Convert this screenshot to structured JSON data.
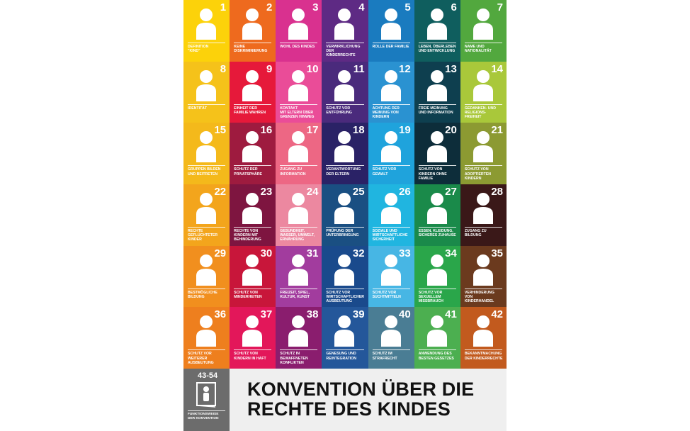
{
  "articles": [
    {
      "num": "1",
      "label": "Definition\n\"Kind\"",
      "color": "#fcd20a",
      "icon": "child-under-18-icon"
    },
    {
      "num": "2",
      "label": "Keine\nDiskriminierung",
      "color": "#ee6a1e",
      "icon": "two-children-icon"
    },
    {
      "num": "3",
      "label": "Wohl des Kindes",
      "color": "#d9318f",
      "icon": "adult-and-child-icon"
    },
    {
      "num": "4",
      "label": "Verwirklichung\nder\nKinderrechte",
      "color": "#5e2a84",
      "icon": "document-seal-icon"
    },
    {
      "num": "5",
      "label": "Rolle der Familie",
      "color": "#1a7bbf",
      "icon": "family-house-icon"
    },
    {
      "num": "6",
      "label": "Leben, Überleben\nund Entwicklung",
      "color": "#0f5e5e",
      "icon": "heart-child-icon"
    },
    {
      "num": "7",
      "label": "Name und\nNationalität",
      "color": "#52a83e",
      "icon": "flag-icon"
    },
    {
      "num": "8",
      "label": "Identität",
      "color": "#f5c21a",
      "icon": "id-card-icon"
    },
    {
      "num": "9",
      "label": "Einheit der\nFamilie wahren",
      "color": "#e6193a",
      "icon": "family-unity-icon"
    },
    {
      "num": "10",
      "label": "Kontakt\nmit Eltern über\nGrenzen hinweg",
      "color": "#ea4c98",
      "icon": "globe-family-icon"
    },
    {
      "num": "11",
      "label": "Schutz vor\nEntführung",
      "color": "#4a2a7c",
      "icon": "abduction-icon"
    },
    {
      "num": "12",
      "label": "Achtung der\nMeinung von\nKindern",
      "color": "#2a92d1",
      "icon": "speech-bubble-icon"
    },
    {
      "num": "13",
      "label": "Freie Meinung\nund Information",
      "color": "#0e3f4f",
      "icon": "megaphone-icon"
    },
    {
      "num": "14",
      "label": "Gedanken- und\nReligions-\nfreiheit",
      "color": "#a9c83a",
      "icon": "thought-bubble-icon"
    },
    {
      "num": "15",
      "label": "Gruppen bilden\nund beitreten",
      "color": "#f4b91b",
      "icon": "protest-sign-icon"
    },
    {
      "num": "16",
      "label": "Schutz der\nPrivatsphäre",
      "color": "#9e1b3f",
      "icon": "keyhole-icon"
    },
    {
      "num": "17",
      "label": "Zugang zu\nInformation",
      "color": "#ed6784",
      "icon": "satellite-icon"
    },
    {
      "num": "18",
      "label": "Verantwortung\nder Eltern",
      "color": "#2a2266",
      "icon": "hands-family-icon"
    },
    {
      "num": "19",
      "label": "Schutz vor\nGewalt",
      "color": "#1fa3dc",
      "icon": "shield-person-icon"
    },
    {
      "num": "20",
      "label": "Schutz von\nKindern ohne\nFamilie",
      "color": "#0d2d3a",
      "icon": "children-without-family-icon"
    },
    {
      "num": "21",
      "label": "Schutz von\nadoptierten\nKindern",
      "color": "#8c9a32",
      "icon": "adoption-heart-icon"
    },
    {
      "num": "22",
      "label": "Rechte\ngeflüchteter\nKinder",
      "color": "#f3a51c",
      "icon": "fleeing-child-icon"
    },
    {
      "num": "23",
      "label": "Rechte von\nKindern mit\nBehinderung",
      "color": "#7e1540",
      "icon": "wheelchair-icon"
    },
    {
      "num": "24",
      "label": "Gesundheit,\nWasser, Umwelt,\nErnährung",
      "color": "#ec88a0",
      "icon": "health-icon"
    },
    {
      "num": "25",
      "label": "Prüfung der\nUnterbringung",
      "color": "#1a4f82",
      "icon": "checklist-icon"
    },
    {
      "num": "26",
      "label": "Soziale und\nwirtschaftliche\nSicherheit",
      "color": "#20b5e0",
      "icon": "hands-child-icon"
    },
    {
      "num": "27",
      "label": "Essen, Kleidung,\nsicheres Zuhause",
      "color": "#1a8a4a",
      "icon": "basic-needs-icon"
    },
    {
      "num": "28",
      "label": "Zugang zu\nBildung",
      "color": "#3a1818",
      "icon": "books-icon"
    },
    {
      "num": "29",
      "label": "Bestmögliche\nBildung",
      "color": "#f18f1e",
      "icon": "thinking-child-icon"
    },
    {
      "num": "30",
      "label": "Schutz von\nMinderheiten",
      "color": "#c8163a",
      "icon": "minorities-icon"
    },
    {
      "num": "31",
      "label": "Freizeit, Spiel,\nKultur, Kunst",
      "color": "#a23c9e",
      "icon": "music-play-icon"
    },
    {
      "num": "32",
      "label": "Schutz vor\nwirtschaftlicher\nAusbeutung",
      "color": "#1a4a8c",
      "icon": "child-labour-icon"
    },
    {
      "num": "33",
      "label": "Schutz vor\nSuchtmitteln",
      "color": "#47b6e4",
      "icon": "drug-shield-icon"
    },
    {
      "num": "34",
      "label": "Schutz vor\nsexuellem\nMissbrauch",
      "color": "#2aa64a",
      "icon": "stop-hand-icon"
    },
    {
      "num": "35",
      "label": "Verhinderung\nvon\nKinderhandel",
      "color": "#6b3a1e",
      "icon": "price-tag-icon"
    },
    {
      "num": "36",
      "label": "Schutz vor\nweiterer\nAusbeutung",
      "color": "#ee7f1e",
      "icon": "shield-family-icon"
    },
    {
      "num": "37",
      "label": "Schutz von\nKindern in Haft",
      "color": "#e3175a",
      "icon": "prison-bars-icon"
    },
    {
      "num": "38",
      "label": "Schutz in\nbewaffneten\nKonflikten",
      "color": "#8a1d6e",
      "icon": "crosshair-icon"
    },
    {
      "num": "39",
      "label": "Genesung und\nReintegration",
      "color": "#24579a",
      "icon": "bandage-icon"
    },
    {
      "num": "40",
      "label": "Schutz im\nStrafrecht",
      "color": "#4a7d94",
      "icon": "scales-icon"
    },
    {
      "num": "41",
      "label": "Anwendung des\nbesten Gesetzes",
      "color": "#4caf50",
      "icon": "podium-scales-icon"
    },
    {
      "num": "42",
      "label": "Bekanntmachung\nder Kinderrechte",
      "color": "#c25a1e",
      "icon": "globe-people-icon"
    }
  ],
  "footer": {
    "func_num": "43-54",
    "func_label": "Funktionsweise\nder Konvention",
    "func_color": "#6c6c6c",
    "func_icon": "book-child-icon",
    "title": "KONVENTION ÜBER DIE\nRECHTE DES KINDES"
  }
}
